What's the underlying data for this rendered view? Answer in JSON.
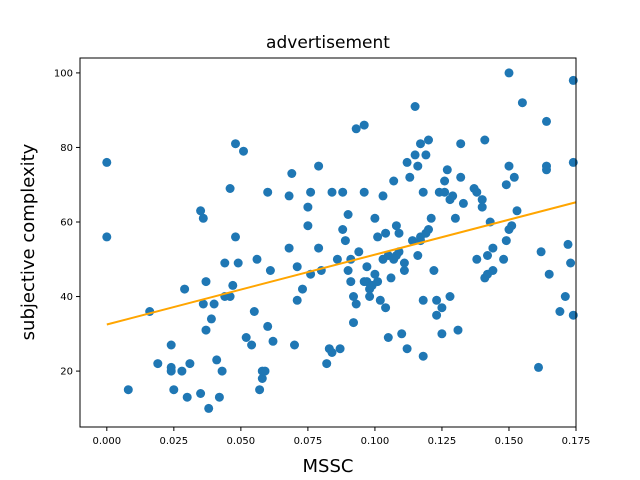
{
  "chart_data": {
    "type": "scatter",
    "title": "advertisement",
    "xlabel": "MSSC",
    "ylabel": "subjective complexity",
    "xlim": [
      -0.01,
      0.175
    ],
    "ylim": [
      5,
      104
    ],
    "xticks": [
      "0.000",
      "0.025",
      "0.050",
      "0.075",
      "0.100",
      "0.125",
      "0.150",
      "0.175"
    ],
    "xtick_values": [
      0,
      0.025,
      0.05,
      0.075,
      0.1,
      0.125,
      0.15,
      0.175
    ],
    "yticks": [
      "20",
      "40",
      "60",
      "80",
      "100"
    ],
    "ytick_values": [
      20,
      40,
      60,
      80,
      100
    ],
    "grid": false,
    "point_color": "#1f77b4",
    "fit_color": "#ffa500",
    "fit_line": {
      "x": [
        0,
        0.175
      ],
      "y": [
        32.5,
        65.3
      ]
    },
    "points": [
      [
        0.0,
        76
      ],
      [
        0.0,
        56
      ],
      [
        0.008,
        15
      ],
      [
        0.016,
        36
      ],
      [
        0.019,
        22
      ],
      [
        0.024,
        21
      ],
      [
        0.024,
        20
      ],
      [
        0.024,
        27
      ],
      [
        0.025,
        15
      ],
      [
        0.028,
        20
      ],
      [
        0.029,
        42
      ],
      [
        0.03,
        13
      ],
      [
        0.031,
        22
      ],
      [
        0.035,
        14
      ],
      [
        0.035,
        63
      ],
      [
        0.036,
        61
      ],
      [
        0.036,
        38
      ],
      [
        0.037,
        31
      ],
      [
        0.037,
        44
      ],
      [
        0.038,
        10
      ],
      [
        0.039,
        34
      ],
      [
        0.04,
        38
      ],
      [
        0.041,
        23
      ],
      [
        0.042,
        13
      ],
      [
        0.043,
        20
      ],
      [
        0.044,
        49
      ],
      [
        0.044,
        40
      ],
      [
        0.046,
        40
      ],
      [
        0.046,
        69
      ],
      [
        0.047,
        43
      ],
      [
        0.048,
        81
      ],
      [
        0.048,
        56
      ],
      [
        0.049,
        49
      ],
      [
        0.051,
        79
      ],
      [
        0.052,
        29
      ],
      [
        0.054,
        27
      ],
      [
        0.055,
        36
      ],
      [
        0.056,
        50
      ],
      [
        0.057,
        15
      ],
      [
        0.058,
        18
      ],
      [
        0.058,
        20
      ],
      [
        0.059,
        20
      ],
      [
        0.06,
        32
      ],
      [
        0.06,
        68
      ],
      [
        0.061,
        47
      ],
      [
        0.062,
        28
      ],
      [
        0.068,
        67
      ],
      [
        0.068,
        53
      ],
      [
        0.069,
        73
      ],
      [
        0.07,
        27
      ],
      [
        0.071,
        39
      ],
      [
        0.071,
        48
      ],
      [
        0.073,
        42
      ],
      [
        0.075,
        59
      ],
      [
        0.075,
        64
      ],
      [
        0.076,
        68
      ],
      [
        0.076,
        46
      ],
      [
        0.079,
        75
      ],
      [
        0.079,
        53
      ],
      [
        0.08,
        47
      ],
      [
        0.082,
        22
      ],
      [
        0.083,
        26
      ],
      [
        0.084,
        25
      ],
      [
        0.084,
        68
      ],
      [
        0.086,
        50
      ],
      [
        0.087,
        26
      ],
      [
        0.088,
        58
      ],
      [
        0.088,
        68
      ],
      [
        0.089,
        55
      ],
      [
        0.09,
        47
      ],
      [
        0.09,
        62
      ],
      [
        0.091,
        44
      ],
      [
        0.091,
        50
      ],
      [
        0.092,
        33
      ],
      [
        0.092,
        40
      ],
      [
        0.093,
        38
      ],
      [
        0.093,
        85
      ],
      [
        0.094,
        52
      ],
      [
        0.096,
        68
      ],
      [
        0.096,
        86
      ],
      [
        0.096,
        44
      ],
      [
        0.097,
        44
      ],
      [
        0.097,
        48
      ],
      [
        0.098,
        42
      ],
      [
        0.098,
        40
      ],
      [
        0.099,
        43
      ],
      [
        0.1,
        46
      ],
      [
        0.1,
        61
      ],
      [
        0.101,
        44
      ],
      [
        0.101,
        56
      ],
      [
        0.102,
        39
      ],
      [
        0.103,
        50
      ],
      [
        0.103,
        67
      ],
      [
        0.104,
        37
      ],
      [
        0.104,
        57
      ],
      [
        0.105,
        29
      ],
      [
        0.105,
        51
      ],
      [
        0.106,
        45
      ],
      [
        0.107,
        50
      ],
      [
        0.107,
        71
      ],
      [
        0.108,
        51
      ],
      [
        0.108,
        59
      ],
      [
        0.109,
        52
      ],
      [
        0.109,
        57
      ],
      [
        0.11,
        30
      ],
      [
        0.111,
        47
      ],
      [
        0.111,
        49
      ],
      [
        0.112,
        26
      ],
      [
        0.112,
        76
      ],
      [
        0.113,
        72
      ],
      [
        0.114,
        55
      ],
      [
        0.115,
        78
      ],
      [
        0.115,
        91
      ],
      [
        0.116,
        75
      ],
      [
        0.116,
        51
      ],
      [
        0.117,
        81
      ],
      [
        0.117,
        55
      ],
      [
        0.117,
        56
      ],
      [
        0.118,
        68
      ],
      [
        0.118,
        24
      ],
      [
        0.118,
        39
      ],
      [
        0.119,
        57
      ],
      [
        0.119,
        78
      ],
      [
        0.12,
        82
      ],
      [
        0.12,
        58
      ],
      [
        0.121,
        61
      ],
      [
        0.122,
        47
      ],
      [
        0.123,
        39
      ],
      [
        0.123,
        35
      ],
      [
        0.124,
        68
      ],
      [
        0.125,
        30
      ],
      [
        0.125,
        37
      ],
      [
        0.126,
        68
      ],
      [
        0.126,
        71
      ],
      [
        0.127,
        74
      ],
      [
        0.128,
        40
      ],
      [
        0.128,
        66
      ],
      [
        0.129,
        67
      ],
      [
        0.13,
        61
      ],
      [
        0.131,
        31
      ],
      [
        0.132,
        81
      ],
      [
        0.132,
        72
      ],
      [
        0.133,
        65
      ],
      [
        0.137,
        69
      ],
      [
        0.138,
        68
      ],
      [
        0.138,
        50
      ],
      [
        0.14,
        66
      ],
      [
        0.14,
        64
      ],
      [
        0.141,
        82
      ],
      [
        0.141,
        45
      ],
      [
        0.142,
        51
      ],
      [
        0.142,
        46
      ],
      [
        0.143,
        60
      ],
      [
        0.144,
        47
      ],
      [
        0.144,
        53
      ],
      [
        0.148,
        50
      ],
      [
        0.149,
        55
      ],
      [
        0.149,
        70
      ],
      [
        0.15,
        58
      ],
      [
        0.15,
        100
      ],
      [
        0.15,
        75
      ],
      [
        0.151,
        59
      ],
      [
        0.152,
        72
      ],
      [
        0.153,
        63
      ],
      [
        0.155,
        92
      ],
      [
        0.161,
        21
      ],
      [
        0.162,
        52
      ],
      [
        0.164,
        87
      ],
      [
        0.164,
        74
      ],
      [
        0.164,
        75
      ],
      [
        0.165,
        46
      ],
      [
        0.169,
        36
      ],
      [
        0.171,
        40
      ],
      [
        0.172,
        54
      ],
      [
        0.173,
        49
      ],
      [
        0.174,
        98
      ],
      [
        0.174,
        76
      ],
      [
        0.174,
        35
      ]
    ]
  }
}
